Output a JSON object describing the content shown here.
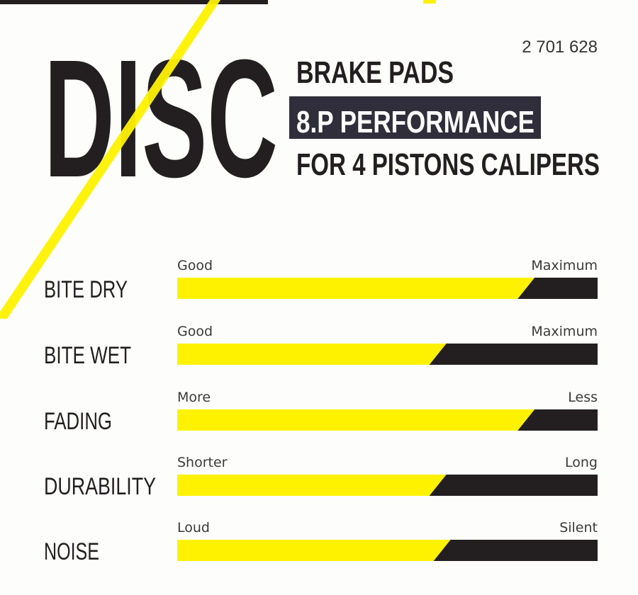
{
  "header": {
    "article_number": "2 701 628",
    "brand_word": "DISC",
    "line1": "BRAKE PADS",
    "line2": "8.P PERFORMANCE",
    "line3": "FOR 4 PISTONS CALIPERS"
  },
  "colors": {
    "yellow": "#fff200",
    "dark": "#231f20",
    "highlight_bg": "#2f2e3a",
    "background": "#fdfdfb"
  },
  "chart_data": {
    "type": "bar",
    "orientation": "horizontal",
    "xlim": [
      0,
      1
    ],
    "categories": [
      "BITE DRY",
      "BITE WET",
      "FADING",
      "DURABILITY",
      "NOISE"
    ],
    "values": [
      0.83,
      0.62,
      0.83,
      0.62,
      0.63
    ],
    "scale_labels": [
      {
        "low": "Good",
        "high": "Maximum"
      },
      {
        "low": "Good",
        "high": "Maximum"
      },
      {
        "low": "More",
        "high": "Less"
      },
      {
        "low": "Shorter",
        "high": "Long"
      },
      {
        "low": "Loud",
        "high": "Silent"
      }
    ]
  }
}
